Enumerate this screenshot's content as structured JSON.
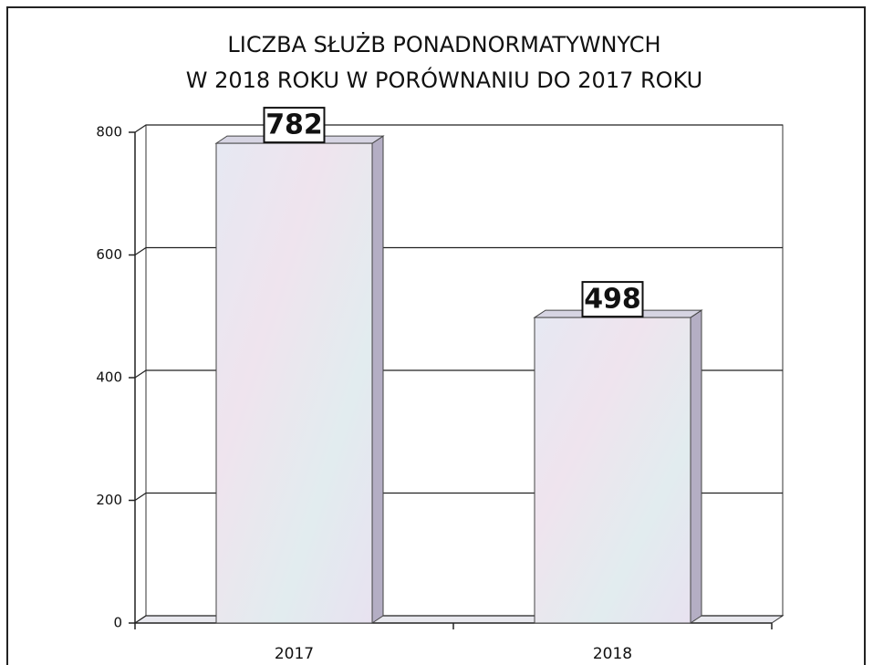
{
  "chart_data": {
    "type": "bar",
    "title": [
      "LICZBA SŁUŻB PONADNORMATYWNYCH",
      "W 2018 ROKU W PORÓWNANIU DO 2017 ROKU"
    ],
    "categories": [
      "2017",
      "2018"
    ],
    "values": [
      782,
      498
    ],
    "ylim": [
      0,
      800
    ],
    "yticks": [
      0,
      200,
      400,
      600,
      800
    ],
    "grid": true
  }
}
